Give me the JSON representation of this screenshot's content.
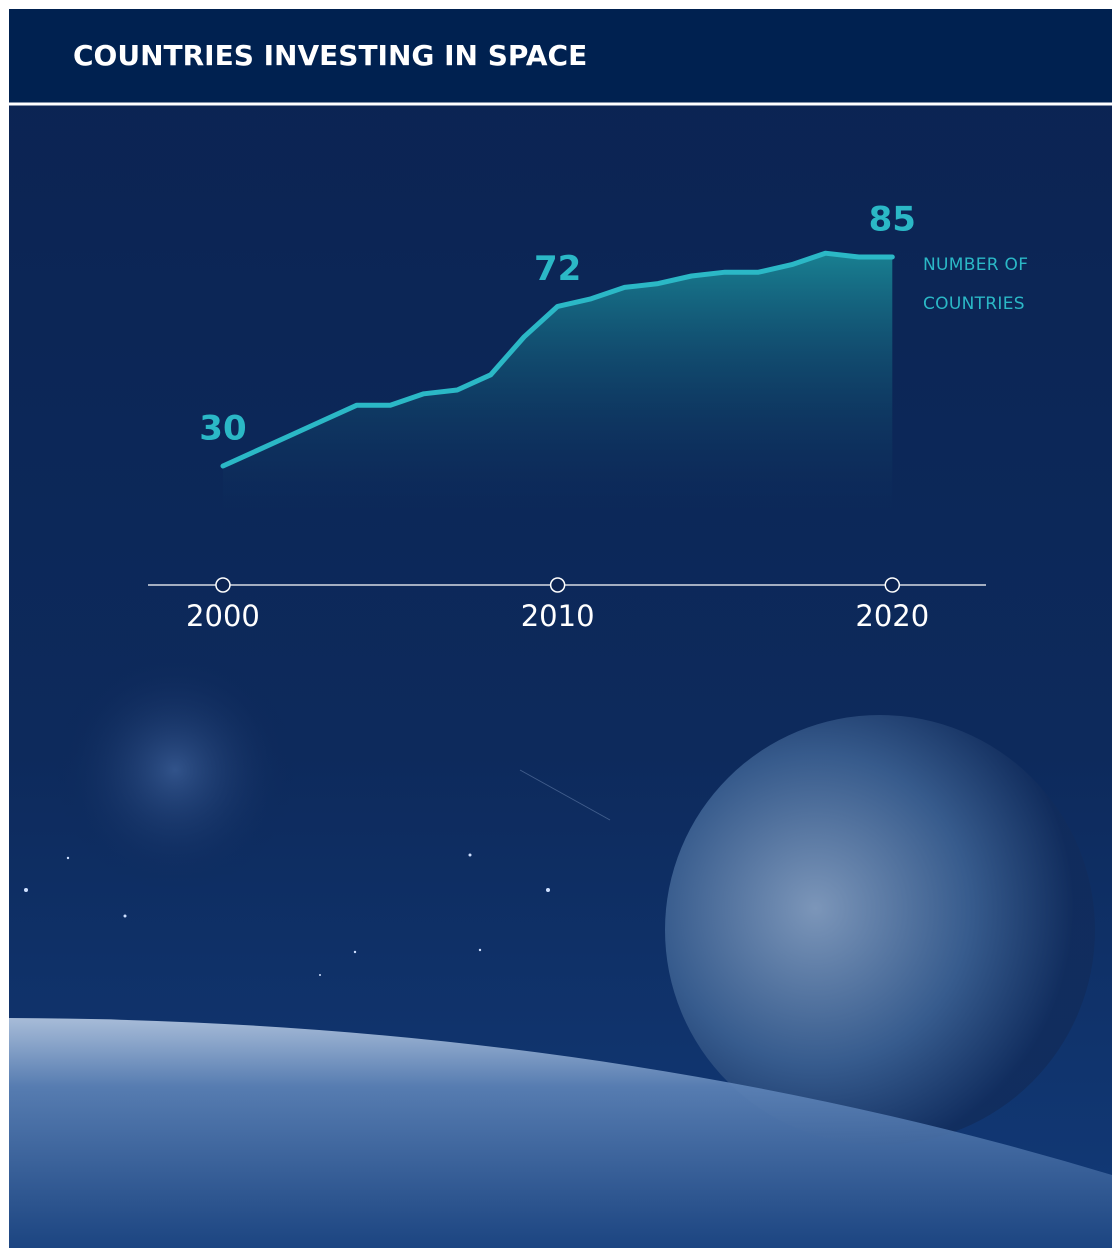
{
  "chart_data": {
    "type": "area-line",
    "title": "COUNTRIES INVESTING IN SPACE",
    "y_label": "NUMBER OF COUNTRIES",
    "x": [
      2000,
      2001,
      2002,
      2003,
      2004,
      2005,
      2006,
      2007,
      2008,
      2009,
      2010,
      2011,
      2012,
      2013,
      2014,
      2015,
      2016,
      2017,
      2018,
      2019,
      2020
    ],
    "values": [
      30,
      34,
      38,
      42,
      46,
      46,
      49,
      50,
      54,
      64,
      72,
      74,
      77,
      78,
      80,
      81,
      81,
      83,
      86,
      85,
      85
    ],
    "labeled_points": [
      0,
      10,
      20
    ],
    "color": "#2bb8c6",
    "xlim": [
      1997.76,
      2022.8
    ],
    "xticks": [
      2000,
      2010,
      2020
    ],
    "ylim": [
      10,
      90
    ]
  }
}
